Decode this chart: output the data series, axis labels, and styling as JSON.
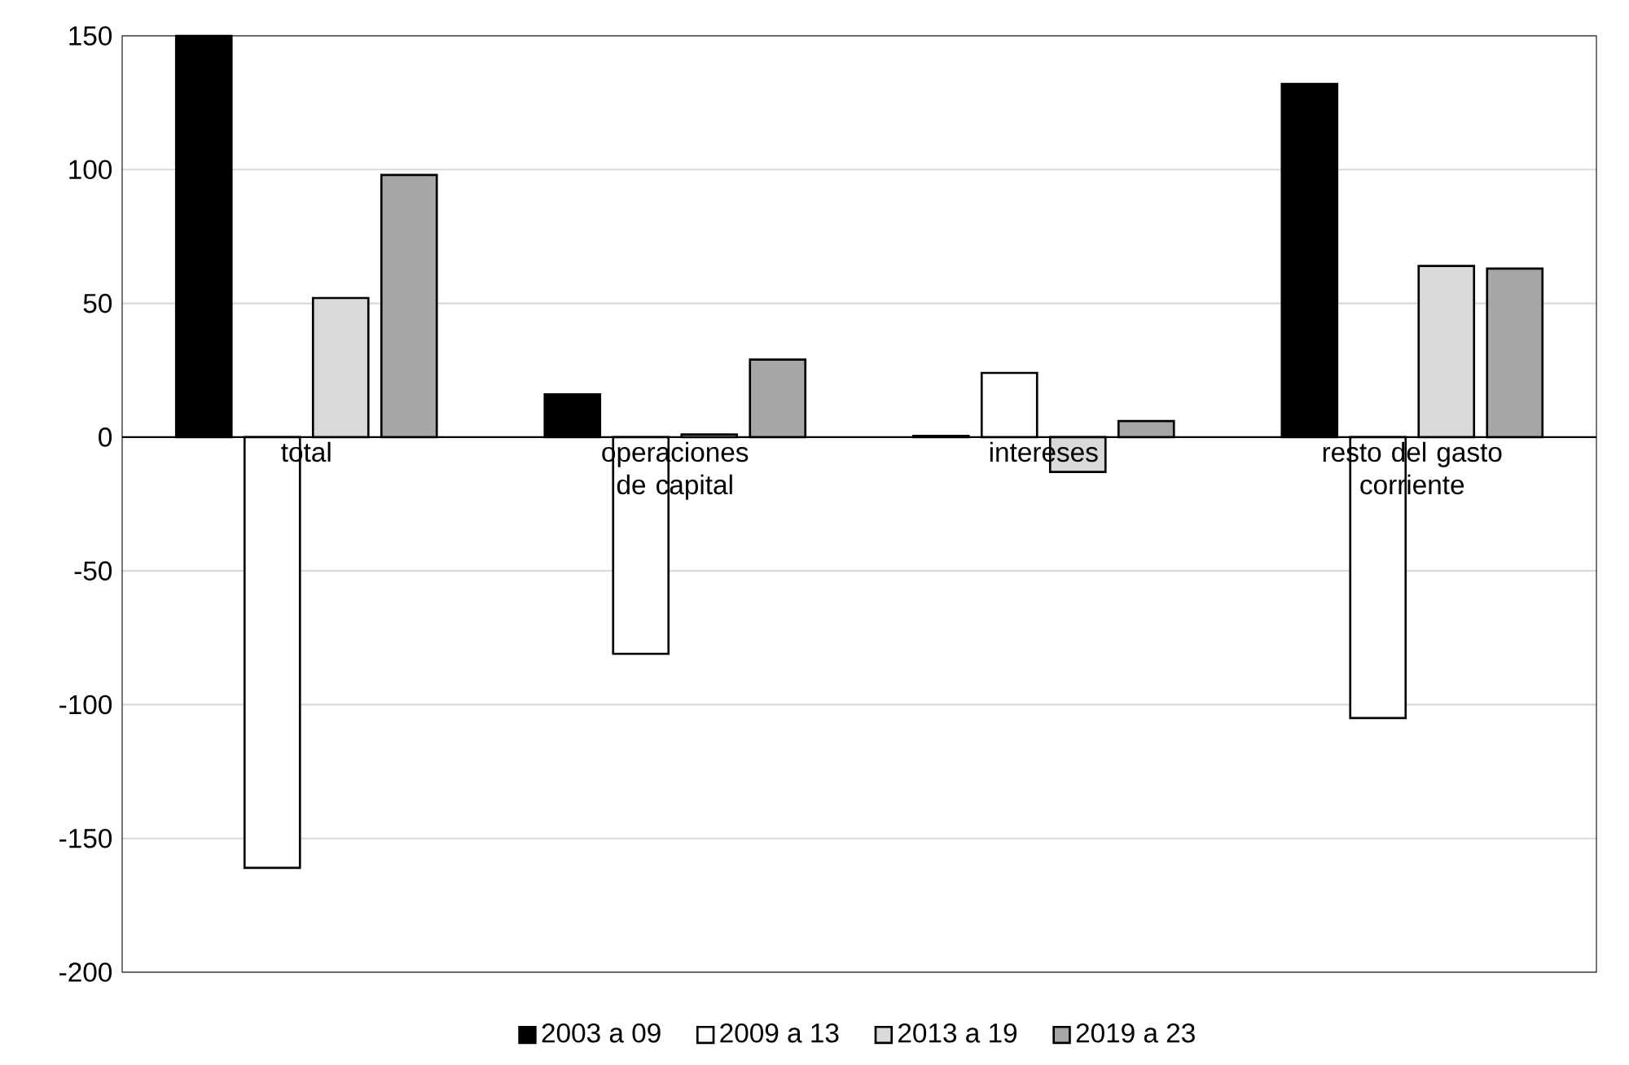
{
  "chart_data": {
    "type": "bar",
    "categories": [
      "total",
      "operaciones de capital",
      "intereses",
      "resto del gasto corriente"
    ],
    "series": [
      {
        "name": "2003 a 09",
        "color": "#000000",
        "values": [
          150,
          16,
          0.5,
          132
        ]
      },
      {
        "name": "2009 a 13",
        "color": "#ffffff",
        "values": [
          -161,
          -81,
          24,
          -105
        ]
      },
      {
        "name": "2013 a 19",
        "color": "#d9d9d9",
        "values": [
          52,
          1,
          -13,
          64
        ]
      },
      {
        "name": "2019 a 23",
        "color": "#a6a6a6",
        "values": [
          98,
          29,
          6,
          63
        ]
      }
    ],
    "ylim": [
      -200,
      150
    ],
    "yticks": [
      -200,
      -150,
      -100,
      -50,
      0,
      50,
      100,
      150
    ],
    "grid": "y",
    "legend": "bottom"
  }
}
